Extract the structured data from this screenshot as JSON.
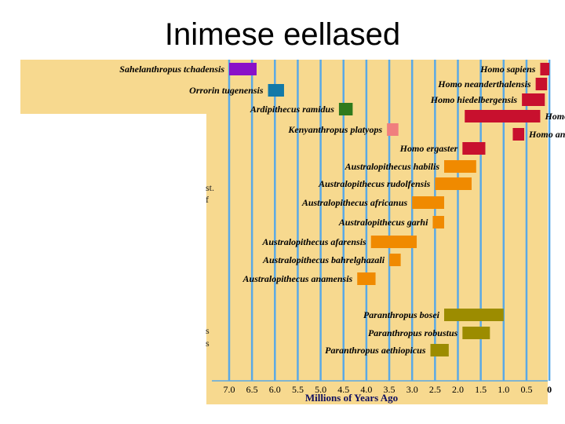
{
  "slide": {
    "title": "Inimese eellased"
  },
  "chart_data": {
    "type": "bar",
    "orientation": "horizontal-range",
    "xlabel": "Millions of Years Ago",
    "x_reversed": true,
    "xlim": [
      7.0,
      0
    ],
    "ticks": [
      "7.0",
      "6.5",
      "6.0",
      "5.5",
      "5.0",
      "4.5",
      "4.0",
      "3.5",
      "3.0",
      "2.5",
      "2.0",
      "1.5",
      "1.0",
      "0.5",
      "0"
    ],
    "left_fragments": [
      "st.",
      "f",
      "s",
      "s"
    ],
    "series": [
      {
        "species": "Sahelanthropus tchadensis",
        "start": 7.0,
        "end": 6.4,
        "color": "#8a10c8"
      },
      {
        "species": "Orrorin tugenensis",
        "start": 6.15,
        "end": 5.8,
        "color": "#1279a8"
      },
      {
        "species": "Ardipithecus ramidus",
        "start": 4.6,
        "end": 4.3,
        "color": "#2f7a1c"
      },
      {
        "species": "Kenyanthropus platyops",
        "start": 3.55,
        "end": 3.3,
        "color": "#f07e7e"
      },
      {
        "species": "Homo sapiens",
        "start": 0.2,
        "end": 0.0,
        "color": "#c8102e"
      },
      {
        "species": "Homo neanderthalensis",
        "start": 0.3,
        "end": 0.05,
        "color": "#c8102e"
      },
      {
        "species": "Homo hiedelbergensis",
        "start": 0.6,
        "end": 0.1,
        "color": "#c8102e"
      },
      {
        "species": "Homo erectus",
        "start": 1.85,
        "end": 0.2,
        "color": "#c8102e"
      },
      {
        "species": "Homo antecessor",
        "start": 0.8,
        "end": 0.55,
        "color": "#c8102e"
      },
      {
        "species": "Homo ergaster",
        "start": 1.9,
        "end": 1.4,
        "color": "#c8102e"
      },
      {
        "species": "Australopithecus habilis",
        "start": 2.3,
        "end": 1.6,
        "color": "#f08a00"
      },
      {
        "species": "Australopithecus rudolfensis",
        "start": 2.5,
        "end": 1.7,
        "color": "#f08a00"
      },
      {
        "species": "Australopithecus africanus",
        "start": 3.0,
        "end": 2.3,
        "color": "#f08a00"
      },
      {
        "species": "Australopithecus garhi",
        "start": 2.55,
        "end": 2.3,
        "color": "#f08a00"
      },
      {
        "species": "Australopithecus afarensis",
        "start": 3.9,
        "end": 2.9,
        "color": "#f08a00"
      },
      {
        "species": "Australopithecus bahrelghazali",
        "start": 3.5,
        "end": 3.25,
        "color": "#f08a00"
      },
      {
        "species": "Australopithecus anamensis",
        "start": 4.2,
        "end": 3.8,
        "color": "#f08a00"
      },
      {
        "species": "Paranthropus bosei",
        "start": 2.3,
        "end": 1.0,
        "color": "#9c8c00"
      },
      {
        "species": "Paranthropus robustus",
        "start": 1.9,
        "end": 1.3,
        "color": "#9c8c00"
      },
      {
        "species": "Paranthropus aethiopicus",
        "start": 2.6,
        "end": 2.2,
        "color": "#9c8c00"
      }
    ]
  }
}
